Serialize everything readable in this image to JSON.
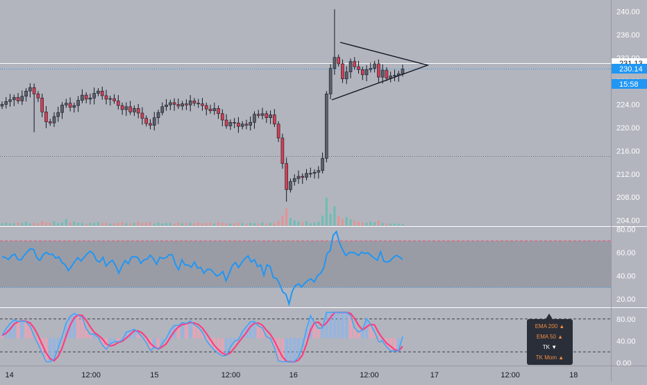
{
  "chart_data": [
    {
      "type": "candlestick",
      "pane": "price",
      "y_ticks": [
        "240.00",
        "236.00",
        "232.00",
        "228.00",
        "224.00",
        "220.00",
        "216.00",
        "212.00",
        "208.00",
        "204.00"
      ],
      "ylim": [
        203,
        242
      ],
      "price_tags": [
        {
          "label": "231.13",
          "value": 231.13,
          "color": "#ffffff",
          "text_color": "#131722"
        },
        {
          "label": "230.14",
          "value": 230.14,
          "color": "#2196f3",
          "text_color": "#ffffff"
        },
        {
          "label": "15:58",
          "value": 228.2,
          "color": "#2196f3",
          "text_color": "#ffffff"
        }
      ],
      "horizontal_lines": [
        {
          "value": 231.13,
          "style": "solid",
          "color": "#ffffff"
        },
        {
          "value": 230.14,
          "style": "dotted",
          "color": "#2196f3"
        },
        {
          "value": 215.1,
          "style": "dotted",
          "color": "#6b6e78"
        }
      ],
      "close_series": [
        224.0,
        224.5,
        224.8,
        225.2,
        224.6,
        225.4,
        226.3,
        226.9,
        225.8,
        225.1,
        222.7,
        221.0,
        220.8,
        221.9,
        222.6,
        223.9,
        224.2,
        223.5,
        223.8,
        224.7,
        225.6,
        224.9,
        225.1,
        225.9,
        226.3,
        225.5,
        224.9,
        225.0,
        224.6,
        223.8,
        223.1,
        223.6,
        222.7,
        223.3,
        222.5,
        221.6,
        220.7,
        220.4,
        221.7,
        222.6,
        223.6,
        223.9,
        224.3,
        224.0,
        223.7,
        224.1,
        223.9,
        224.6,
        224.2,
        224.1,
        223.8,
        223.2,
        222.9,
        223.3,
        222.4,
        221.3,
        220.3,
        220.9,
        220.8,
        220.2,
        220.6,
        220.4,
        220.9,
        222.3,
        222.1,
        222.4,
        221.7,
        222.2,
        220.6,
        218.2,
        213.8,
        209.3,
        210.7,
        211.2,
        211.6,
        211.4,
        212.1,
        212.1,
        212.3,
        212.6,
        214.7,
        225.8,
        230.2,
        232.1,
        231.0,
        228.4,
        229.6,
        231.4,
        230.5,
        230.0,
        229.1,
        230.0,
        230.2,
        231.0,
        228.7,
        229.9,
        228.5,
        228.9,
        229.0,
        229.3,
        230.1
      ],
      "triangle": {
        "upper_start": [
          490,
          61
        ],
        "apex": [
          616,
          94
        ],
        "lower_start": [
          478,
          144
        ]
      },
      "volume": [
        4.0,
        5.2,
        3.8,
        4.6,
        6.1,
        5.0,
        7.4,
        4.2,
        5.5,
        3.9,
        9.1,
        6.3,
        5.7,
        8.4,
        4.8,
        5.9,
        12.7,
        6.6,
        7.5,
        5.4,
        4.9,
        3.8,
        5.1,
        4.4,
        6.7,
        4.9,
        5.6,
        3.7,
        4.5,
        5.2,
        6.8,
        4.4,
        3.9,
        5.1,
        7.2,
        4.6,
        5.7,
        6.4,
        3.3,
        5.8,
        4.1,
        4.7,
        5.0,
        3.6,
        6.1,
        4.5,
        5.3,
        4.9,
        4.2,
        6.3,
        3.8,
        4.7,
        5.9,
        3.8,
        6.6,
        5.5,
        4.0,
        3.9,
        4.8,
        5.2,
        4.7,
        3.6,
        5.3,
        4.4,
        4.1,
        6.0,
        3.8,
        5.3,
        4.9,
        8.6,
        20.1,
        34.5,
        15.2,
        10.4,
        7.7,
        6.3,
        8.9,
        4.6,
        5.1,
        7.4,
        19.8,
        55.6,
        23.4,
        38.2,
        18.4,
        13.3,
        16.7,
        12.1,
        9.3,
        7.1,
        6.4,
        5.2,
        7.7,
        6.2,
        9.8,
        5.1,
        4.1,
        4.0,
        3.6,
        3.3,
        2.9
      ]
    },
    {
      "type": "line",
      "pane": "rsi",
      "y_ticks": [
        "80.00",
        "60.00",
        "40.00",
        "20.00"
      ],
      "ylim": [
        13,
        82
      ],
      "band": [
        30,
        70
      ],
      "values": [
        56.4,
        55.8,
        53.9,
        57.2,
        58.7,
        54.0,
        53.6,
        57.5,
        60.6,
        63.2,
        62.6,
        55.5,
        53.2,
        58.1,
        60.1,
        58.4,
        58.5,
        55.2,
        56.2,
        51.3,
        49.5,
        44.5,
        48.1,
        52.2,
        55.6,
        52.7,
        55.7,
        59.0,
        61.0,
        58.6,
        53.0,
        51.9,
        55.9,
        48.2,
        51.5,
        53.3,
        48.8,
        42.3,
        48.2,
        53.2,
        50.3,
        55.9,
        56.6,
        55.7,
        50.7,
        53.7,
        54.4,
        57.7,
        54.5,
        49.8,
        55.9,
        54.8,
        55.6,
        58.1,
        58.1,
        49.6,
        45.2,
        53.8,
        49.2,
        49.3,
        47.3,
        51.8,
        46.5,
        47.2,
        42.2,
        45.4,
        45.7,
        43.0,
        39.9,
        41.0,
        43.7,
        35.7,
        42.1,
        48.9,
        51.4,
        47.1,
        51.5,
        54.9,
        57.1,
        51.8,
        53.9,
        47.8,
        49.4,
        40.3,
        49.6,
        48.0,
        38.4,
        37.8,
        33.0,
        26.1,
        24.2,
        15.8,
        26.8,
        31.6,
        33.1,
        30.5,
        33.8,
        36.1,
        37.4,
        34.6,
        40.1,
        42.2,
        46.8,
        59.1,
        61.2,
        74.8,
        77.9,
        68.4,
        62.1,
        57.3,
        59.9,
        60.1,
        59.3,
        57.4,
        60.4,
        59.1,
        59.7,
        57.3,
        55.2,
        53.4,
        60.7,
        52.6,
        51.7,
        52.8,
        55.6,
        57.6,
        56.1,
        53.9
      ],
      "color": "#2196f3"
    },
    {
      "type": "histogram",
      "pane": "oscillator",
      "y_ticks": [
        "80.00",
        "40.00",
        "0.00"
      ],
      "ylim": [
        -5,
        100
      ],
      "levels": [
        80,
        20
      ],
      "legend": [
        {
          "label": "EMA 200",
          "marker": "▲",
          "color": "#f08c3c"
        },
        {
          "label": "EMA 50",
          "marker": "▲",
          "color": "#f08c3c"
        },
        {
          "label": "TK",
          "marker": "▼",
          "color": "#ffffff"
        },
        {
          "label": "TK Mom",
          "marker": "▲",
          "color": "#f08c3c"
        }
      ]
    }
  ],
  "x_axis": {
    "labels": [
      {
        "label": "14",
        "pos": 0.008
      },
      {
        "label": "12:00",
        "pos": 0.126
      },
      {
        "label": "15",
        "pos": 0.232
      },
      {
        "label": "12:00",
        "pos": 0.342
      },
      {
        "label": "16",
        "pos": 0.447
      },
      {
        "label": "12:00",
        "pos": 0.556
      },
      {
        "label": "17",
        "pos": 0.665
      },
      {
        "label": "12:00",
        "pos": 0.774
      },
      {
        "label": "18",
        "pos": 0.88
      }
    ]
  },
  "colors": {
    "up": "#26a69a",
    "down": "#ef5350",
    "up_body": "#5d606b",
    "down_body": "#d33f55",
    "wick": "#131722"
  }
}
